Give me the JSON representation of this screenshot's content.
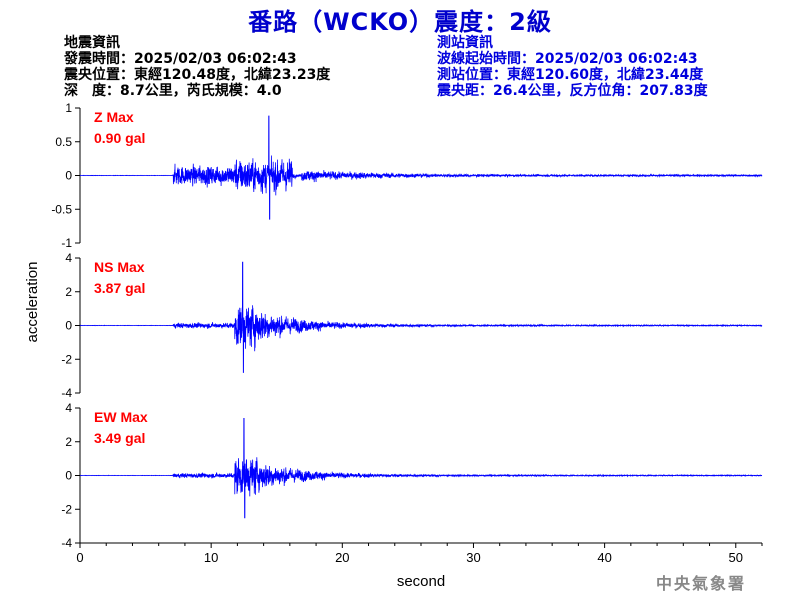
{
  "title": "番路（WCKO）震度：2級",
  "event_info": {
    "heading": "地震資訊",
    "time": "發震時間：2025/02/03 06:02:43",
    "epicenter": "震央位置：東經120.48度，北緯23.23度",
    "depth_magnitude": "深　度：8.7公里，芮氏規模：4.0"
  },
  "station_info": {
    "heading": "測站資訊",
    "wave_start": "波線起始時間：2025/02/03 06:02:43",
    "location": "測站位置：東經120.60度，北緯23.44度",
    "distance": "震央距：26.4公里，反方位角：207.83度"
  },
  "footer": "中央氣象署",
  "colors": {
    "title": "#0000cc",
    "trace": "#0000ff",
    "max_label": "#ff0000",
    "station_text": "#0000dd"
  },
  "chart_data": [
    {
      "type": "line",
      "component": "Z",
      "max_label": "Z Max",
      "max_value": "0.90 gal",
      "peak": 0.9,
      "ylim": [
        -1,
        1
      ],
      "yticks": [
        "1",
        "0.5",
        "0",
        "-0.5",
        "-1"
      ],
      "ytick_values": [
        1,
        0.5,
        0,
        -0.5,
        -1
      ]
    },
    {
      "type": "line",
      "component": "NS",
      "max_label": "NS Max",
      "max_value": "3.87 gal",
      "peak": 3.87,
      "ylim": [
        -4,
        4
      ],
      "yticks": [
        "4",
        "2",
        "0",
        "-2",
        "-4"
      ],
      "ytick_values": [
        4,
        2,
        0,
        -2,
        -4
      ]
    },
    {
      "type": "line",
      "component": "EW",
      "max_label": "EW Max",
      "max_value": "3.49 gal",
      "peak": 3.49,
      "ylim": [
        -4,
        4
      ],
      "yticks": [
        "4",
        "2",
        "0",
        "-2",
        "-4"
      ],
      "ytick_values": [
        4,
        2,
        0,
        -2,
        -4
      ]
    }
  ],
  "axes": {
    "xlabel": "second",
    "ylabel": "acceleration",
    "xlim": [
      0,
      52
    ],
    "xticks": [
      "0",
      "10",
      "20",
      "30",
      "40",
      "50"
    ],
    "xtick_values": [
      0,
      10,
      20,
      30,
      40,
      50
    ],
    "p_arrival_s": 7.1,
    "s_arrival_s": 11.8,
    "trace_end_s": 52
  }
}
